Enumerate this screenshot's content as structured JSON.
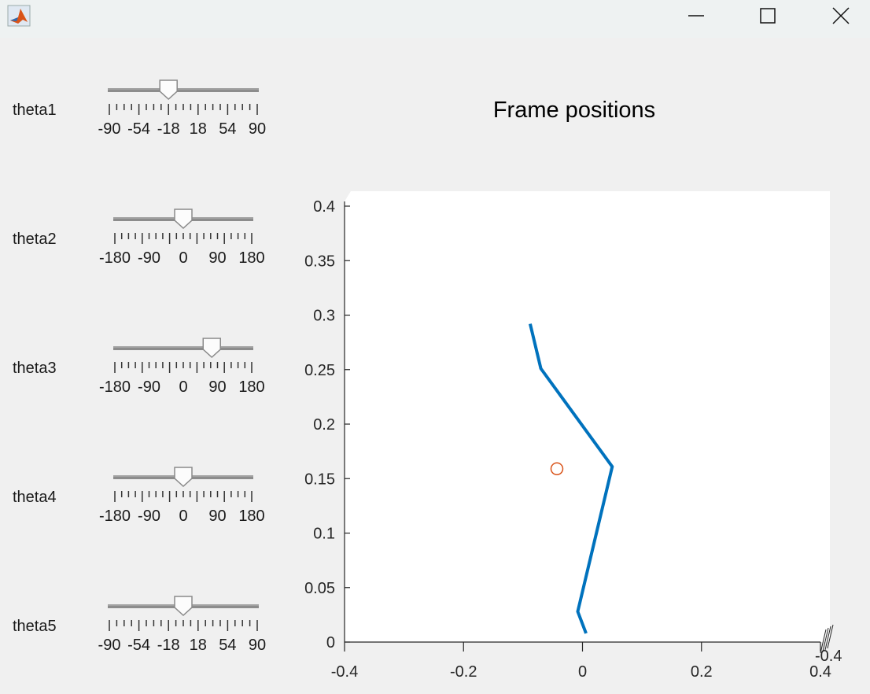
{
  "window": {
    "app_icon": "matlab-icon",
    "controls": [
      "minimize-icon",
      "maximize-icon",
      "close-icon"
    ]
  },
  "sliders": [
    {
      "label": "theta1",
      "min": -90,
      "max": 90,
      "value": -18,
      "ticks": [
        "-90",
        "-54",
        "-18",
        "18",
        "54",
        "90"
      ]
    },
    {
      "label": "theta2",
      "min": -180,
      "max": 180,
      "value": 0,
      "ticks": [
        "-180",
        "-90",
        "0",
        "90",
        "180"
      ]
    },
    {
      "label": "theta3",
      "min": -180,
      "max": 180,
      "value": 75,
      "ticks": [
        "-180",
        "-90",
        "0",
        "90",
        "180"
      ]
    },
    {
      "label": "theta4",
      "min": -180,
      "max": 180,
      "value": 0,
      "ticks": [
        "-180",
        "-90",
        "0",
        "90",
        "180"
      ]
    },
    {
      "label": "theta5",
      "min": -90,
      "max": 90,
      "value": 0,
      "ticks": [
        "-90",
        "-54",
        "-18",
        "18",
        "54",
        "90"
      ]
    }
  ],
  "plot": {
    "title": "Frame positions",
    "x_ticks": [
      "-0.4",
      "-0.2",
      "0",
      "0.2",
      "0.4"
    ],
    "y_ticks": [
      "0",
      "0.05",
      "0.1",
      "0.15",
      "0.2",
      "0.25",
      "0.3",
      "0.35",
      "0.4"
    ],
    "z_tick_label": "-0.4"
  },
  "chart_data": {
    "type": "line",
    "title": "Frame positions",
    "xlabel": "",
    "ylabel": "",
    "xlim": [
      -0.4,
      0.4
    ],
    "ylim": [
      0,
      0.4
    ],
    "grid": false,
    "series": [
      {
        "color": "#0072BD",
        "x": [
          0.006,
          -0.008,
          0.05,
          -0.07,
          -0.088
        ],
        "y": [
          0.008,
          0.028,
          0.161,
          0.251,
          0.292
        ]
      }
    ],
    "markers": [
      {
        "color": "#D95319",
        "shape": "circle",
        "x": [
          -0.043
        ],
        "y": [
          0.159
        ]
      }
    ]
  }
}
